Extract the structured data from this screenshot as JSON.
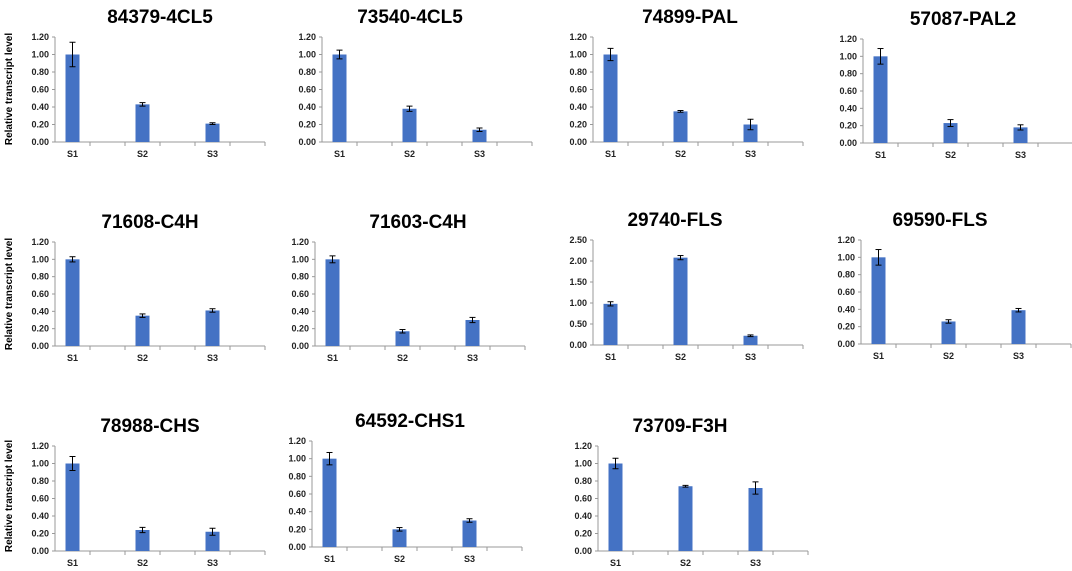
{
  "y_axis_label": "Relative transcript level",
  "bar_color": "#4472C4",
  "chart_data": [
    {
      "type": "bar",
      "title": "84379-4CL5",
      "categories": [
        "S1",
        "S2",
        "S3"
      ],
      "values": [
        1.0,
        0.43,
        0.21
      ],
      "errors": [
        0.14,
        0.02,
        0.01
      ],
      "ylim": [
        0,
        1.2
      ],
      "yticks": [
        "0.00",
        "0.20",
        "0.40",
        "0.60",
        "0.80",
        "1.00",
        "1.20"
      ]
    },
    {
      "type": "bar",
      "title": "73540-4CL5",
      "categories": [
        "S1",
        "S2",
        "S3"
      ],
      "values": [
        1.0,
        0.38,
        0.14
      ],
      "errors": [
        0.05,
        0.03,
        0.02
      ],
      "ylim": [
        0,
        1.2
      ],
      "yticks": [
        "0.00",
        "0.20",
        "0.40",
        "0.60",
        "0.80",
        "1.00",
        "1.20"
      ]
    },
    {
      "type": "bar",
      "title": "74899-PAL",
      "categories": [
        "S1",
        "S2",
        "S3"
      ],
      "values": [
        1.0,
        0.35,
        0.2
      ],
      "errors": [
        0.07,
        0.01,
        0.06
      ],
      "ylim": [
        0,
        1.2
      ],
      "yticks": [
        "0.00",
        "0.20",
        "0.40",
        "0.60",
        "0.80",
        "1.00",
        "1.20"
      ]
    },
    {
      "type": "bar",
      "title": "57087-PAL2",
      "categories": [
        "S1",
        "S2",
        "S3"
      ],
      "values": [
        1.0,
        0.23,
        0.18
      ],
      "errors": [
        0.09,
        0.04,
        0.03
      ],
      "ylim": [
        0,
        1.2
      ],
      "yticks": [
        "0.00",
        "0.20",
        "0.40",
        "0.60",
        "0.80",
        "1.00",
        "1.20"
      ]
    },
    {
      "type": "bar",
      "title": "71608-C4H",
      "categories": [
        "S1",
        "S2",
        "S3"
      ],
      "values": [
        1.0,
        0.35,
        0.41
      ],
      "errors": [
        0.03,
        0.02,
        0.02
      ],
      "ylim": [
        0,
        1.2
      ],
      "yticks": [
        "0.00",
        "0.20",
        "0.40",
        "0.60",
        "0.80",
        "1.00",
        "1.20"
      ]
    },
    {
      "type": "bar",
      "title": "71603-C4H",
      "categories": [
        "S1",
        "S2",
        "S3"
      ],
      "values": [
        1.0,
        0.17,
        0.3
      ],
      "errors": [
        0.04,
        0.02,
        0.03
      ],
      "ylim": [
        0,
        1.2
      ],
      "yticks": [
        "0.00",
        "0.20",
        "0.40",
        "0.60",
        "0.80",
        "1.00",
        "1.20"
      ]
    },
    {
      "type": "bar",
      "title": "29740-FLS",
      "categories": [
        "S1",
        "S2",
        "S3"
      ],
      "values": [
        0.98,
        2.08,
        0.22
      ],
      "errors": [
        0.05,
        0.05,
        0.02
      ],
      "ylim": [
        0,
        2.5
      ],
      "yticks": [
        "0.00",
        "0.50",
        "1.00",
        "1.50",
        "2.00",
        "2.50"
      ]
    },
    {
      "type": "bar",
      "title": "69590-FLS",
      "categories": [
        "S1",
        "S2",
        "S3"
      ],
      "values": [
        1.0,
        0.26,
        0.39
      ],
      "errors": [
        0.09,
        0.02,
        0.02
      ],
      "ylim": [
        0,
        1.2
      ],
      "yticks": [
        "0.00",
        "0.20",
        "0.40",
        "0.60",
        "0.80",
        "1.00",
        "1.20"
      ]
    },
    {
      "type": "bar",
      "title": "78988-CHS",
      "categories": [
        "S1",
        "S2",
        "S3"
      ],
      "values": [
        1.0,
        0.24,
        0.22
      ],
      "errors": [
        0.08,
        0.03,
        0.04
      ],
      "ylim": [
        0,
        1.2
      ],
      "yticks": [
        "0.00",
        "0.20",
        "0.40",
        "0.60",
        "0.80",
        "1.00",
        "1.20"
      ]
    },
    {
      "type": "bar",
      "title": "64592-CHS1",
      "categories": [
        "S1",
        "S2",
        "S3"
      ],
      "values": [
        1.0,
        0.2,
        0.3
      ],
      "errors": [
        0.07,
        0.02,
        0.02
      ],
      "ylim": [
        0,
        1.2
      ],
      "yticks": [
        "0.00",
        "0.20",
        "0.40",
        "0.60",
        "0.80",
        "1.00",
        "1.20"
      ]
    },
    {
      "type": "bar",
      "title": "73709-F3H",
      "categories": [
        "S1",
        "S2",
        "S3"
      ],
      "values": [
        1.0,
        0.74,
        0.72
      ],
      "errors": [
        0.06,
        0.01,
        0.07
      ],
      "ylim": [
        0,
        1.2
      ],
      "yticks": [
        "0.00",
        "0.20",
        "0.40",
        "0.60",
        "0.80",
        "1.00",
        "1.20"
      ]
    }
  ]
}
